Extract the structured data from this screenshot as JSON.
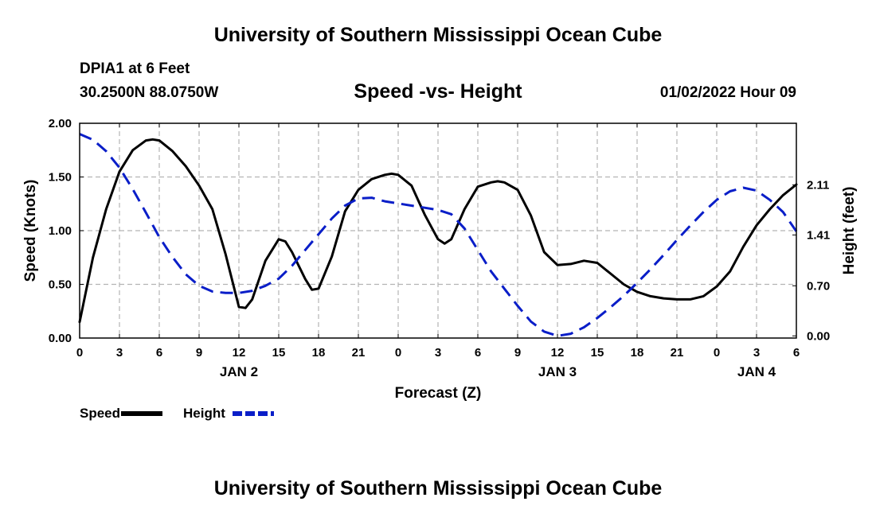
{
  "header": {
    "title": "University of Southern Mississippi Ocean Cube",
    "station": "DPIA1 at 6 Feet",
    "coords": "30.2500N  88.0750W",
    "subtitle": "Speed -vs- Height",
    "datetime": "01/02/2022 Hour 09"
  },
  "footer": {
    "title": "University of Southern Mississippi Ocean Cube"
  },
  "chart_data": {
    "type": "line",
    "title": "Speed -vs- Height",
    "xlabel": "Forecast (Z)",
    "ylabel_left": "Speed (Knots)",
    "ylabel_right": "Height (feet)",
    "x_range": [
      0,
      54
    ],
    "x_ticks": [
      0,
      3,
      6,
      9,
      12,
      15,
      18,
      21,
      24,
      27,
      30,
      33,
      36,
      39,
      42,
      45,
      48,
      51,
      54
    ],
    "x_tick_labels": [
      "0",
      "3",
      "6",
      "9",
      "12",
      "15",
      "18",
      "21",
      "0",
      "3",
      "6",
      "9",
      "12",
      "15",
      "18",
      "21",
      "0",
      "3",
      "6"
    ],
    "date_labels": [
      {
        "x": 12,
        "label": "JAN 2"
      },
      {
        "x": 36,
        "label": "JAN 3"
      },
      {
        "x": 51,
        "label": "JAN 4"
      }
    ],
    "y_left_range": [
      0,
      2
    ],
    "y_left_ticks": [
      0,
      0.5,
      1,
      1.5,
      2
    ],
    "y_left_tick_labels": [
      "0.00",
      "0.50",
      "1.00",
      "1.50",
      "2.00"
    ],
    "y_right_range": [
      -0.03,
      2.97
    ],
    "y_right_ticks": [
      0,
      0.7,
      1.41,
      2.11
    ],
    "y_right_tick_labels": [
      "0.00",
      "0.70",
      "1.41",
      "2.11"
    ],
    "grid": true,
    "legend_position": "bottom-left",
    "series": [
      {
        "name": "Speed",
        "axis": "left",
        "color": "#000000",
        "dash": "solid",
        "x": [
          0,
          1,
          2,
          3,
          4,
          5,
          5.5,
          6,
          7,
          8,
          9,
          10,
          11,
          12,
          12.5,
          13,
          14,
          15,
          15.5,
          16,
          17,
          17.5,
          18,
          19,
          20,
          21,
          22,
          23,
          23.5,
          24,
          25,
          26,
          27,
          27.5,
          28,
          29,
          30,
          31,
          31.5,
          32,
          33,
          34,
          35,
          36,
          37,
          38,
          39,
          40,
          41,
          42,
          43,
          44,
          45,
          46,
          47,
          48,
          49,
          50,
          51,
          52,
          53,
          54
        ],
        "values": [
          0.15,
          0.75,
          1.2,
          1.55,
          1.75,
          1.84,
          1.85,
          1.84,
          1.74,
          1.6,
          1.42,
          1.2,
          0.78,
          0.29,
          0.28,
          0.36,
          0.72,
          0.92,
          0.9,
          0.8,
          0.55,
          0.45,
          0.46,
          0.76,
          1.18,
          1.38,
          1.48,
          1.52,
          1.53,
          1.52,
          1.42,
          1.15,
          0.92,
          0.88,
          0.92,
          1.2,
          1.41,
          1.45,
          1.46,
          1.45,
          1.38,
          1.14,
          0.8,
          0.68,
          0.69,
          0.72,
          0.7,
          0.6,
          0.5,
          0.43,
          0.39,
          0.37,
          0.36,
          0.36,
          0.39,
          0.48,
          0.62,
          0.85,
          1.05,
          1.2,
          1.33,
          1.43
        ]
      },
      {
        "name": "Height",
        "axis": "right",
        "color": "#0a1ec8",
        "dash": "dashed",
        "x": [
          0,
          1,
          2,
          3,
          4,
          5,
          6,
          7,
          8,
          9,
          10,
          11,
          12,
          13,
          14,
          15,
          16,
          17,
          18,
          19,
          20,
          21,
          22,
          23,
          24,
          25,
          26,
          27,
          28,
          29,
          30,
          31,
          32,
          33,
          34,
          35,
          36,
          37,
          38,
          39,
          40,
          41,
          42,
          43,
          44,
          45,
          46,
          47,
          48,
          49,
          50,
          51,
          52,
          53,
          54
        ],
        "values": [
          2.82,
          2.74,
          2.58,
          2.35,
          2.05,
          1.72,
          1.38,
          1.1,
          0.86,
          0.7,
          0.62,
          0.6,
          0.6,
          0.63,
          0.7,
          0.8,
          0.98,
          1.2,
          1.42,
          1.64,
          1.82,
          1.92,
          1.93,
          1.88,
          1.85,
          1.82,
          1.79,
          1.76,
          1.7,
          1.5,
          1.2,
          0.9,
          0.66,
          0.42,
          0.2,
          0.06,
          0.0,
          0.03,
          0.12,
          0.25,
          0.4,
          0.56,
          0.74,
          0.93,
          1.13,
          1.34,
          1.54,
          1.73,
          1.9,
          2.02,
          2.07,
          2.03,
          1.9,
          1.73,
          1.46
        ]
      }
    ]
  }
}
